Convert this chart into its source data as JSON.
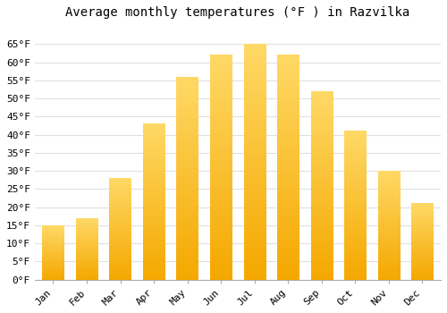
{
  "title": "Average monthly temperatures (°F ) in Razvilka",
  "months": [
    "Jan",
    "Feb",
    "Mar",
    "Apr",
    "May",
    "Jun",
    "Jul",
    "Aug",
    "Sep",
    "Oct",
    "Nov",
    "Dec"
  ],
  "values": [
    15,
    17,
    28,
    43,
    56,
    62,
    65,
    62,
    52,
    41,
    30,
    21
  ],
  "bar_color_bottom": "#F5A800",
  "bar_color_top": "#FFD966",
  "background_color": "#FFFFFF",
  "ylim": [
    0,
    70
  ],
  "yticks": [
    0,
    5,
    10,
    15,
    20,
    25,
    30,
    35,
    40,
    45,
    50,
    55,
    60,
    65
  ],
  "ytick_labels": [
    "0°F",
    "5°F",
    "10°F",
    "15°F",
    "20°F",
    "25°F",
    "30°F",
    "35°F",
    "40°F",
    "45°F",
    "50°F",
    "55°F",
    "60°F",
    "65°F"
  ],
  "title_fontsize": 10,
  "tick_fontsize": 8,
  "grid_color": "#E0E0E0",
  "font_family": "monospace"
}
